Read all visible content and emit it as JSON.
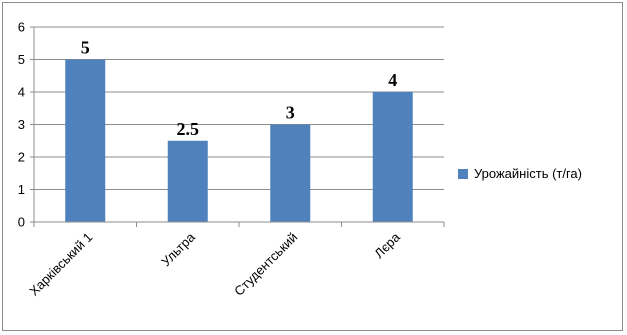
{
  "chart_data": {
    "type": "bar",
    "categories": [
      "Харківський 1",
      "Ультра",
      "Студентський",
      "Лєра"
    ],
    "series": [
      {
        "name": "Урожайність (т/га)",
        "values": [
          5,
          2.5,
          3,
          4
        ],
        "color": "#4f81bd"
      }
    ],
    "data_labels": [
      "5",
      "2.5",
      "3",
      "4"
    ],
    "y_ticks": [
      "0",
      "1",
      "2",
      "3",
      "4",
      "5",
      "6"
    ],
    "ylim": [
      0,
      6
    ],
    "grid": true,
    "legend_position": "right",
    "title": "",
    "xlabel": "",
    "ylabel": ""
  }
}
